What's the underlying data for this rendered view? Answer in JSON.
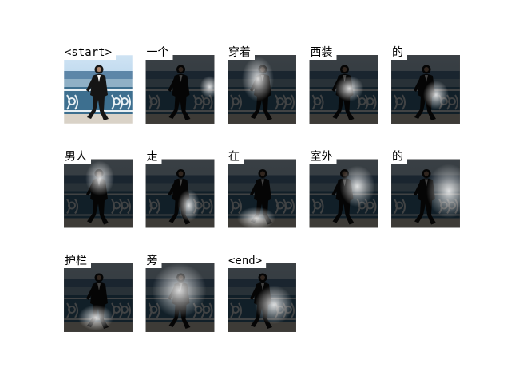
{
  "cells": [
    {
      "word": "<start>"
    },
    {
      "word": "一个"
    },
    {
      "word": "穿着"
    },
    {
      "word": "西装"
    },
    {
      "word": "的"
    },
    {
      "word": "男人"
    },
    {
      "word": "走"
    },
    {
      "word": "在"
    },
    {
      "word": "室外"
    },
    {
      "word": "的"
    },
    {
      "word": "护栏"
    },
    {
      "word": "旁"
    },
    {
      "word": "<end>"
    }
  ]
}
